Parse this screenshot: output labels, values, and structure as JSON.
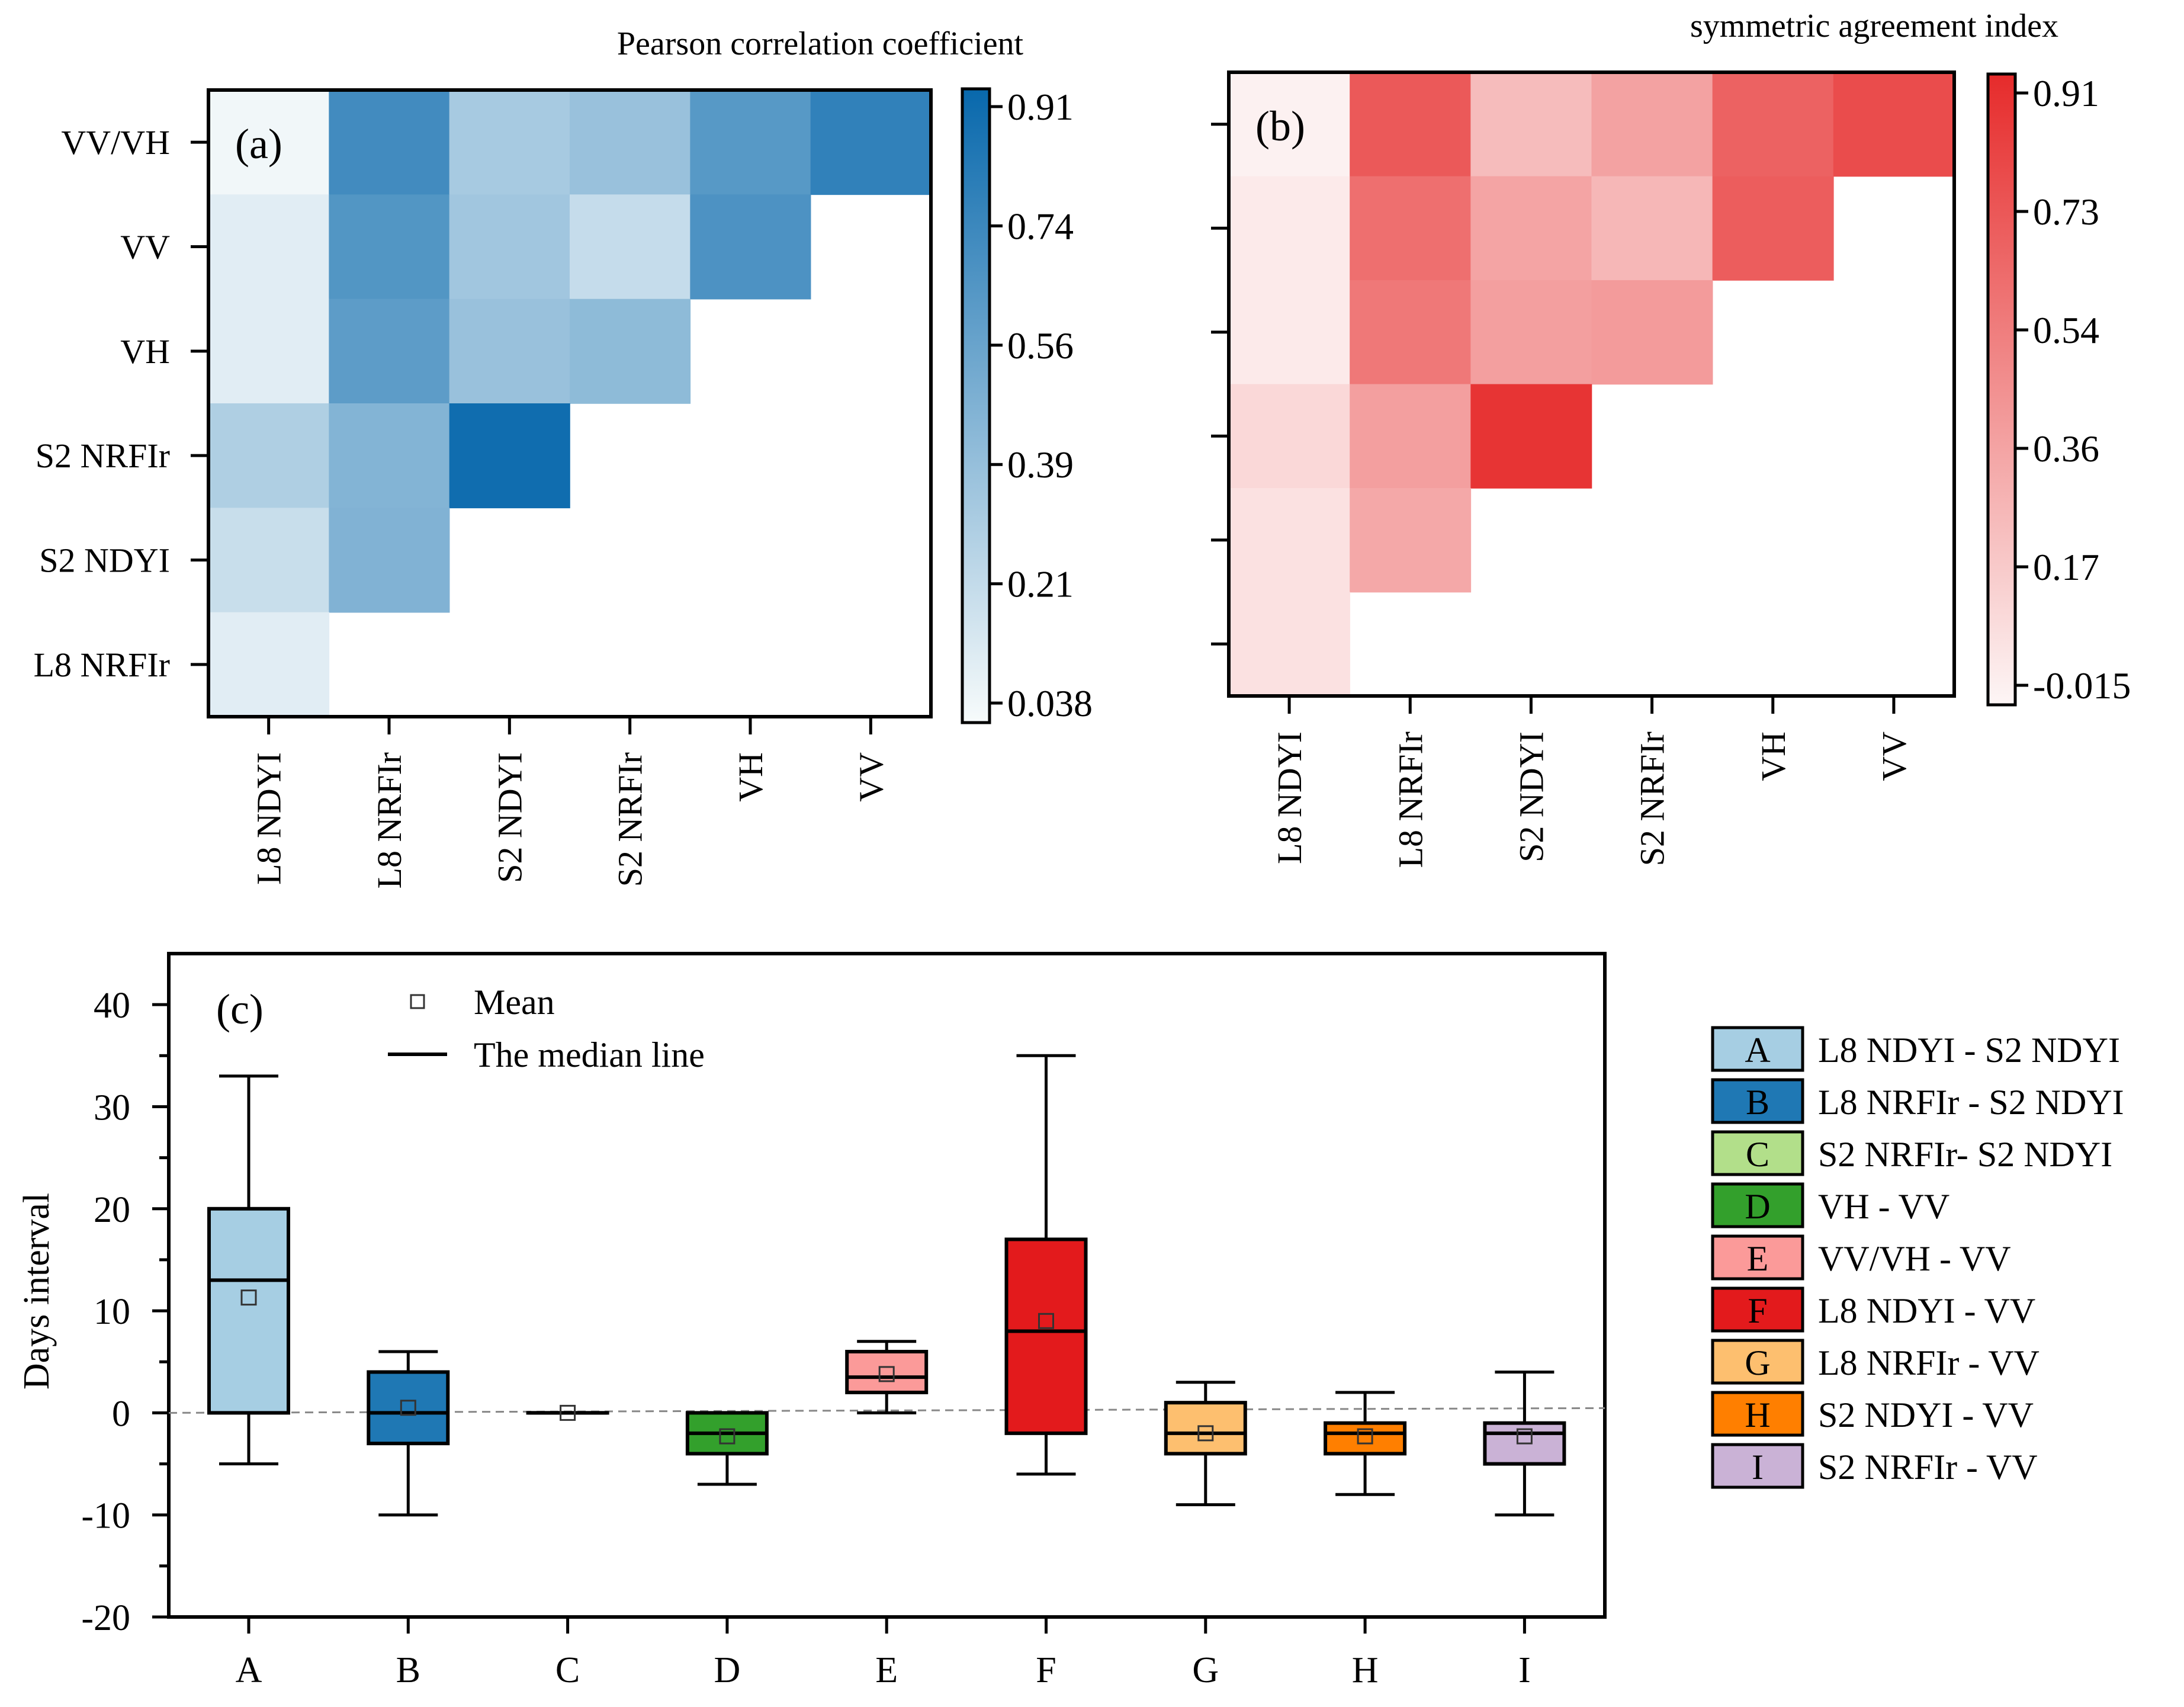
{
  "chart_data": [
    {
      "id": "a",
      "type": "heatmap",
      "panel_label": "(a)",
      "title": "Pearson correlation coefficient",
      "row_labels": [
        "VV/VH",
        "VV",
        "VH",
        "S2 NRFIr",
        "S2 NDYI",
        "L8 NRFIr"
      ],
      "col_labels": [
        "L8 NDYI",
        "L8 NRFIr",
        "S2 NDYI",
        "S2 NRFIr",
        "VH",
        "VV"
      ],
      "values": [
        [
          0.06,
          0.7,
          0.33,
          0.38,
          0.62,
          0.76
        ],
        [
          0.12,
          0.64,
          0.35,
          0.22,
          0.66,
          null
        ],
        [
          0.12,
          0.6,
          0.38,
          0.42,
          null,
          null
        ],
        [
          0.3,
          0.46,
          0.88,
          null,
          null,
          null
        ],
        [
          0.21,
          0.47,
          null,
          null,
          null,
          null
        ],
        [
          0.12,
          null,
          null,
          null,
          null,
          null
        ]
      ],
      "colorbar": {
        "ticks": [
          "0.91",
          "0.74",
          "0.56",
          "0.39",
          "0.21",
          "0.038"
        ],
        "min": 0.038,
        "max": 0.91,
        "color_low": "#f7fbfb",
        "color_high": "#0868ac"
      },
      "show_x_tick_labels": true,
      "show_y_tick_labels": true
    },
    {
      "id": "b",
      "type": "heatmap",
      "panel_label": "(b)",
      "title": "symmetric agreement index",
      "row_labels": [
        "VV/VH",
        "VV",
        "VH",
        "S2 NRFIr",
        "S2 NDYI",
        "L8 NRFIr"
      ],
      "col_labels": [
        "L8 NDYI",
        "L8 NRFIr",
        "S2 NDYI",
        "S2 NRFIr",
        "VH",
        "VV"
      ],
      "values": [
        [
          0.01,
          0.7,
          0.25,
          0.37,
          0.66,
          0.76
        ],
        [
          0.04,
          0.6,
          0.36,
          0.27,
          0.68,
          null
        ],
        [
          0.04,
          0.56,
          0.38,
          0.4,
          null,
          null
        ],
        [
          0.12,
          0.38,
          0.87,
          null,
          null,
          null
        ],
        [
          0.08,
          0.34,
          null,
          null,
          null,
          null
        ],
        [
          0.08,
          null,
          null,
          null,
          null,
          null
        ]
      ],
      "colorbar": {
        "ticks": [
          "0.91",
          "0.73",
          "0.54",
          "0.36",
          "0.17",
          "-0.015"
        ],
        "min": -0.015,
        "max": 0.91,
        "color_low": "#fdf6f6",
        "color_high": "#e62b2b"
      },
      "show_x_tick_labels": true,
      "show_y_tick_labels": false
    },
    {
      "id": "c",
      "type": "box",
      "panel_label": "(c)",
      "ylabel": "Days interval",
      "ylim": [
        -20,
        45
      ],
      "yticks": [
        "-20",
        "-10",
        "0",
        "10",
        "20",
        "30",
        "40"
      ],
      "reference_line": 0,
      "legend_key": {
        "mean": "Mean",
        "median": "The median line"
      },
      "boxes": [
        {
          "key": "A",
          "name": "L8 NDYI - S2 NDYI",
          "color": "#a6cee3",
          "min": -5,
          "q1": 0,
          "median": 13,
          "q3": 20,
          "max": 33,
          "mean": 11.3
        },
        {
          "key": "B",
          "name": "L8 NRFIr - S2 NDYI",
          "color": "#1f78b4",
          "min": -10,
          "q1": -3,
          "median": 0,
          "q3": 4,
          "max": 6,
          "mean": 0.5
        },
        {
          "key": "C",
          "name": "S2 NRFIr- S2 NDYI",
          "color": "#b2df8a",
          "min": 0,
          "q1": 0,
          "median": 0,
          "q3": 0,
          "max": 0,
          "mean": 0
        },
        {
          "key": "D",
          "name": "VH - VV",
          "color": "#33a02c",
          "min": -7,
          "q1": -4,
          "median": -2,
          "q3": 0,
          "max": 0,
          "mean": -2.3
        },
        {
          "key": "E",
          "name": "VV/VH - VV",
          "color": "#fb9a99",
          "min": 0,
          "q1": 2,
          "median": 3.5,
          "q3": 6,
          "max": 7,
          "mean": 3.8
        },
        {
          "key": "F",
          "name": "L8 NDYI - VV",
          "color": "#e31a1c",
          "min": -6,
          "q1": -2,
          "median": 8,
          "q3": 17,
          "max": 35,
          "mean": 9
        },
        {
          "key": "G",
          "name": "L8 NRFIr - VV",
          "color": "#fdbf6f",
          "min": -9,
          "q1": -4,
          "median": -2,
          "q3": 1,
          "max": 3,
          "mean": -2
        },
        {
          "key": "H",
          "name": "S2 NDYI - VV",
          "color": "#ff7f00",
          "min": -8,
          "q1": -4,
          "median": -2,
          "q3": -1,
          "max": 2,
          "mean": -2.3
        },
        {
          "key": "I",
          "name": "S2 NRFIr - VV",
          "color": "#cab2d6",
          "min": -10,
          "q1": -5,
          "median": -2,
          "q3": -1,
          "max": 4,
          "mean": -2.3
        }
      ]
    }
  ]
}
